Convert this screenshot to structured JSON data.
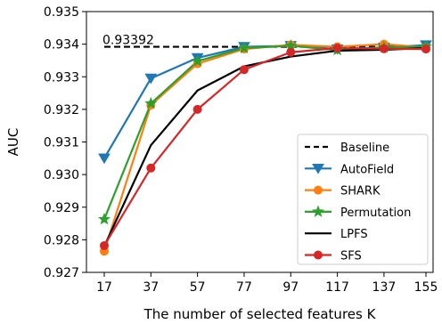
{
  "chart_data": {
    "type": "line",
    "xlabel": "The number of selected features K",
    "ylabel": "AUC",
    "x": [
      17,
      37,
      57,
      77,
      97,
      117,
      137,
      155
    ],
    "xticks": [
      "17",
      "37",
      "57",
      "77",
      "97",
      "117",
      "137",
      "155"
    ],
    "ylim": [
      0.927,
      0.935
    ],
    "yticks": [
      "0.927",
      "0.928",
      "0.929",
      "0.930",
      "0.931",
      "0.932",
      "0.933",
      "0.934",
      "0.935"
    ],
    "grid": false,
    "legend_position": "bottom-right",
    "baseline": {
      "name": "Baseline",
      "value": 0.93392,
      "label": "0.93392",
      "color": "#000000",
      "style": "dashed"
    },
    "series": [
      {
        "name": "AutoField",
        "color": "#1f77b4",
        "marker": "triangle-down",
        "values": [
          0.9305,
          0.93295,
          0.93358,
          0.93392,
          0.93395,
          0.93385,
          0.9339,
          0.93397
        ]
      },
      {
        "name": "SHARK",
        "color": "#ff7f0e",
        "marker": "circle",
        "values": [
          0.92765,
          0.93213,
          0.9334,
          0.93385,
          0.93398,
          0.93392,
          0.934,
          0.9339
        ]
      },
      {
        "name": "Permutation",
        "color": "#2ca02c",
        "marker": "star",
        "values": [
          0.92863,
          0.93218,
          0.93348,
          0.93388,
          0.93395,
          0.93382,
          0.9339,
          0.93393
        ]
      },
      {
        "name": "LPFS",
        "color": "#000000",
        "marker": "none",
        "values": [
          0.9278,
          0.9309,
          0.93258,
          0.93332,
          0.93362,
          0.9338,
          0.93383,
          0.93388
        ]
      },
      {
        "name": "SFS",
        "color": "#d62728",
        "marker": "circle",
        "values": [
          0.92782,
          0.9302,
          0.932,
          0.93322,
          0.93375,
          0.93388,
          0.93386,
          0.93385
        ]
      }
    ]
  }
}
